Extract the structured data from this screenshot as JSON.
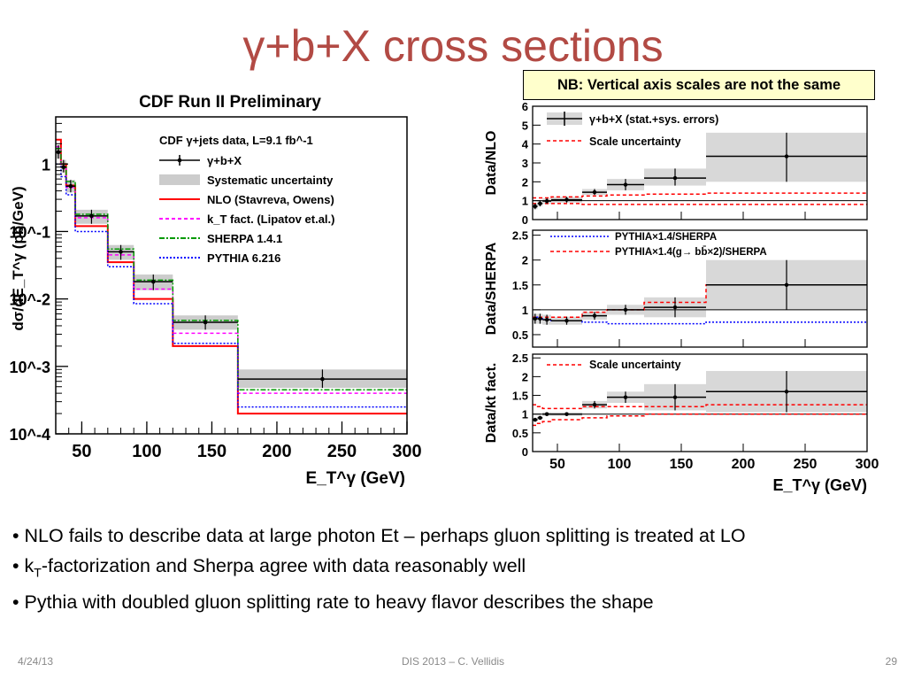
{
  "slide": {
    "title": "γ+b+X cross sections",
    "note": "NB: Vertical axis scales are not the same",
    "bullets": [
      {
        "text": "NLO fails to describe data at large photon Et – perhaps gluon splitting is treated at LO"
      },
      {
        "pre": "k",
        "sub": "T",
        "post": "-factorization and Sherpa agree with data reasonably well"
      },
      {
        "text": "Pythia with doubled gluon splitting rate to heavy flavor describes the shape"
      }
    ],
    "footer": {
      "date": "4/24/13",
      "center": "DIS 2013 – C. Vellidis",
      "page": "29"
    }
  },
  "chart_data": [
    {
      "type": "line",
      "title": "CDF Run II Preliminary",
      "xlabel": "E_T^γ (GeV)",
      "ylabel": "dσ/dE_T^γ (pb/GeV)",
      "yscale": "log",
      "xlim": [
        30,
        300
      ],
      "ylim": [
        0.0001,
        5
      ],
      "xticks": [
        "50",
        "100",
        "150",
        "200",
        "250",
        "300"
      ],
      "yticks": [
        "1",
        "10^-1",
        "10^-2",
        "10^-3",
        "10^-4"
      ],
      "legend_header": "CDF γ+jets data, L=9.1 fb^-1",
      "bin_edges": [
        30,
        34,
        38,
        45,
        70,
        90,
        120,
        170,
        300
      ],
      "bin_centers": [
        32,
        36,
        41.5,
        57.5,
        80,
        105,
        145,
        235
      ],
      "series": [
        {
          "name": "γ+b+X",
          "color": "#000000",
          "values": [
            1.5,
            0.9,
            0.47,
            0.17,
            0.05,
            0.018,
            0.0045,
            0.00065
          ]
        },
        {
          "name": "Systematic uncertainty",
          "color": "#cccccc",
          "low": [
            1.2,
            0.75,
            0.38,
            0.13,
            0.038,
            0.0135,
            0.0035,
            0.00048
          ],
          "high": [
            1.9,
            1.15,
            0.58,
            0.21,
            0.063,
            0.023,
            0.0057,
            0.0009
          ]
        },
        {
          "name": "NLO (Stavreva, Owens)",
          "color": "#ff0000",
          "values": [
            2.3,
            1.0,
            0.48,
            0.12,
            0.035,
            0.01,
            0.002,
            0.0002
          ]
        },
        {
          "name": "k_T fact. (Lipatov et.al.)",
          "color": "#ff00ff",
          "values": [
            1.8,
            0.9,
            0.45,
            0.16,
            0.045,
            0.014,
            0.0031,
            0.0004
          ]
        },
        {
          "name": "SHERPA 1.4.1",
          "color": "#009900",
          "values": [
            1.7,
            1.0,
            0.55,
            0.18,
            0.055,
            0.019,
            0.0048,
            0.00045
          ]
        },
        {
          "name": "PYTHIA 6.216",
          "color": "#0000ff",
          "values": [
            1.0,
            0.65,
            0.35,
            0.1,
            0.03,
            0.0085,
            0.0022,
            0.00025
          ]
        }
      ]
    },
    {
      "type": "line",
      "xlabel": "E_T^γ (GeV)",
      "xlim": [
        30,
        300
      ],
      "xticks": [
        "50",
        "100",
        "150",
        "200",
        "250",
        "300"
      ],
      "bin_edges": [
        30,
        34,
        38,
        45,
        70,
        90,
        120,
        170,
        300
      ],
      "bin_centers": [
        32,
        36,
        41.5,
        57.5,
        80,
        105,
        145,
        235
      ],
      "panels": [
        {
          "ylabel": "Data/NLO",
          "ylim": [
            0,
            6
          ],
          "yticks": [
            "0",
            "1",
            "2",
            "3",
            "4",
            "5",
            "6"
          ],
          "series": [
            {
              "name": "γ+b+X (stat.+sys. errors)",
              "color": "#000000",
              "values": [
                0.7,
                0.85,
                0.98,
                1.05,
                1.45,
                1.85,
                2.2,
                3.35
              ],
              "low": [
                0.55,
                0.7,
                0.83,
                0.9,
                1.3,
                1.55,
                1.8,
                2.0
              ],
              "high": [
                0.85,
                1.0,
                1.13,
                1.2,
                1.62,
                2.15,
                2.7,
                4.6
              ]
            },
            {
              "name": "Scale uncertainty",
              "color": "#ff0000",
              "low": [
                0.85,
                0.85,
                0.85,
                0.85,
                0.8,
                0.8,
                0.8,
                0.8
              ],
              "high": [
                1.15,
                1.15,
                1.15,
                1.2,
                1.25,
                1.3,
                1.35,
                1.4
              ]
            }
          ]
        },
        {
          "ylabel": "Data/SHERPA",
          "ylim": [
            0.25,
            2.6
          ],
          "yticks": [
            "0.5",
            "1",
            "1.5",
            "2",
            "2.5"
          ],
          "series": [
            {
              "name": "data",
              "color": "#000000",
              "values": [
                0.82,
                0.82,
                0.8,
                0.78,
                0.88,
                1.0,
                1.05,
                1.5
              ],
              "low": [
                0.72,
                0.72,
                0.7,
                0.7,
                0.8,
                0.9,
                0.85,
                1.0
              ],
              "high": [
                0.92,
                0.92,
                0.9,
                0.86,
                0.96,
                1.1,
                1.25,
                2.0
              ]
            },
            {
              "name": "PYTHIA×1.4/SHERPA",
              "color": "#0000ff",
              "values": [
                0.85,
                0.82,
                0.8,
                0.78,
                0.75,
                0.72,
                0.72,
                0.75
              ]
            },
            {
              "name": "PYTHIA×1.4(g→ bb̄×2)/SHERPA",
              "color": "#ff0000",
              "values": [
                0.85,
                0.85,
                0.85,
                0.85,
                0.95,
                1.0,
                1.15,
                1.5
              ]
            }
          ]
        },
        {
          "ylabel": "Data/kt fact.",
          "ylim": [
            0,
            2.6
          ],
          "yticks": [
            "0",
            "0.5",
            "1",
            "1.5",
            "2",
            "2.5"
          ],
          "series": [
            {
              "name": "data",
              "color": "#000000",
              "values": [
                0.85,
                0.9,
                1.0,
                1.0,
                1.25,
                1.45,
                1.45,
                1.6
              ],
              "low": [
                0.8,
                0.85,
                0.95,
                0.95,
                1.15,
                1.3,
                1.1,
                1.05
              ],
              "high": [
                0.9,
                0.95,
                1.05,
                1.05,
                1.35,
                1.6,
                1.8,
                2.15
              ]
            },
            {
              "name": "Scale uncertainty",
              "color": "#ff0000",
              "low": [
                0.7,
                0.75,
                0.8,
                0.85,
                0.9,
                0.95,
                1.0,
                1.0
              ],
              "high": [
                1.25,
                1.2,
                1.15,
                1.15,
                1.2,
                1.2,
                1.2,
                1.25
              ]
            }
          ]
        }
      ]
    }
  ]
}
